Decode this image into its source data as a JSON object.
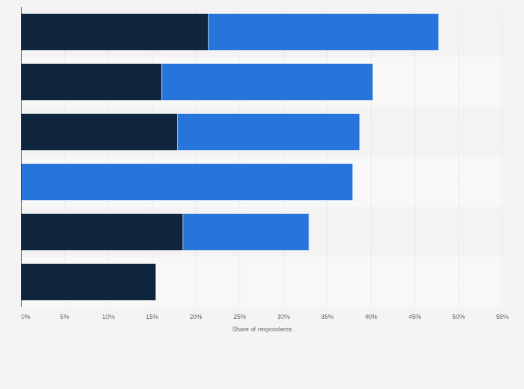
{
  "chart_data": {
    "type": "bar",
    "orientation": "horizontal",
    "stacked": true,
    "title": "",
    "xlabel": "Share of respondents",
    "ylabel": "",
    "xlim": [
      0,
      55
    ],
    "x_ticks": [
      "0%",
      "5%",
      "10%",
      "15%",
      "20%",
      "25%",
      "30%",
      "35%",
      "40%",
      "45%",
      "50%",
      "55%"
    ],
    "grid": true,
    "legend": "none",
    "categories": [
      "",
      "",
      "",
      "",
      "",
      ""
    ],
    "series": [
      {
        "color": "#10263d",
        "values": [
          21.4,
          16.1,
          17.9,
          0,
          18.5,
          15.4
        ]
      },
      {
        "color": "#2775db",
        "values": [
          26.3,
          24.1,
          20.8,
          37.9,
          14.4,
          0
        ]
      }
    ]
  }
}
